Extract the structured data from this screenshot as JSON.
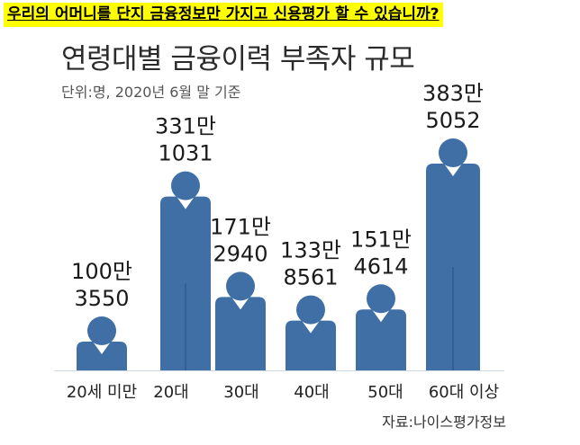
{
  "headline": "우리의 어머니를 단지 금융정보만 가지고 신용평가 할 수 있습니까?",
  "colors": {
    "bar": "#3f6fa5",
    "bar_dark": "#2f5b8d",
    "highlight": "#ffff00"
  },
  "chart_data": {
    "type": "bar",
    "title": "연령대별 금융이력 부족자 규모",
    "subtitle": "단위:명, 2020년 6월 말 기준",
    "source": "자료:나이스평가정보",
    "categories": [
      "20세 미만",
      "20대",
      "30대",
      "40대",
      "50대",
      "60대 이상"
    ],
    "value_labels": [
      [
        "100만",
        "3550"
      ],
      [
        "331만",
        "1031"
      ],
      [
        "171만",
        "2940"
      ],
      [
        "133만",
        "8561"
      ],
      [
        "151만",
        "4614"
      ],
      [
        "383만",
        "5052"
      ]
    ],
    "values": [
      1003550,
      3311031,
      1712940,
      1338561,
      1514614,
      3835052
    ],
    "xlabel": "",
    "ylabel": "",
    "ylim": [
      0,
      3835052
    ],
    "grid": false,
    "legend": "none"
  }
}
